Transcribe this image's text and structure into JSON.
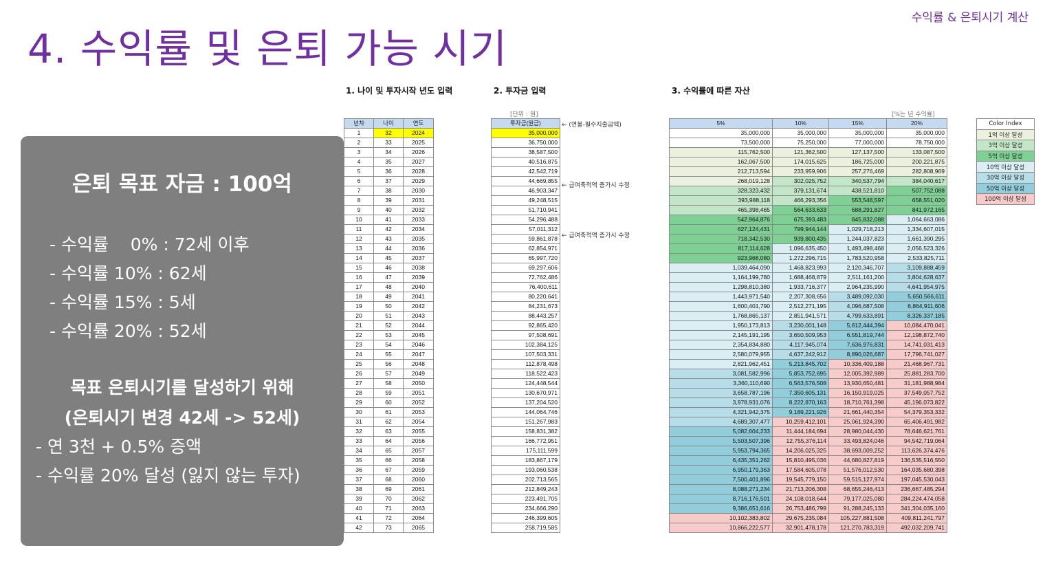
{
  "header": {
    "tag": "수익률 & 은퇴시기 계산"
  },
  "title": "4. 수익률 및 은퇴 가능 시기",
  "sections": {
    "s1": "1. 나이 및 투자시작 년도 입력",
    "s2": "2. 투자금 입력",
    "s3": "3. 수익률에 따른 자산"
  },
  "notes": {
    "unit": "[단위 : 원]",
    "rate_unit": "[%는 년 수익률]"
  },
  "side_notes": [
    "← (연봉-필수지출금액)",
    "← 급여축적액 증가시 수정",
    "← 급여축적액 증가시 수정"
  ],
  "summary": {
    "heading": "은퇴 목표 자금 : 100억",
    "rates": [
      "- 수익률    0% : 72세 이후",
      "- 수익률 10% : 62세",
      "- 수익률 15% : 5세",
      "- 수익률 20% : 52세"
    ],
    "goal1": "목표 은퇴시기를 달성하기 위해",
    "goal2": "(은퇴시기 변경 42세 -> 52세)",
    "bullets": [
      "- 연 3천 + 0.5% 증액",
      "- 수익률 20% 달성 (잃지 않는 투자)"
    ]
  },
  "age_table": {
    "headers": [
      "년차",
      "나이",
      "연도"
    ],
    "rows": [
      [
        "1",
        "32",
        "2024"
      ],
      [
        "2",
        "33",
        "2025"
      ],
      [
        "3",
        "34",
        "2026"
      ],
      [
        "4",
        "35",
        "2027"
      ],
      [
        "5",
        "36",
        "2028"
      ],
      [
        "6",
        "37",
        "2029"
      ],
      [
        "7",
        "38",
        "2030"
      ],
      [
        "8",
        "39",
        "2031"
      ],
      [
        "9",
        "40",
        "2032"
      ],
      [
        "10",
        "41",
        "2033"
      ],
      [
        "11",
        "42",
        "2034"
      ],
      [
        "12",
        "43",
        "2035"
      ],
      [
        "13",
        "44",
        "2036"
      ],
      [
        "14",
        "45",
        "2037"
      ],
      [
        "15",
        "46",
        "2038"
      ],
      [
        "16",
        "47",
        "2039"
      ],
      [
        "17",
        "48",
        "2040"
      ],
      [
        "18",
        "49",
        "2041"
      ],
      [
        "19",
        "50",
        "2042"
      ],
      [
        "20",
        "51",
        "2043"
      ],
      [
        "21",
        "52",
        "2044"
      ],
      [
        "22",
        "53",
        "2045"
      ],
      [
        "23",
        "54",
        "2046"
      ],
      [
        "24",
        "55",
        "2047"
      ],
      [
        "25",
        "56",
        "2048"
      ],
      [
        "26",
        "57",
        "2049"
      ],
      [
        "27",
        "58",
        "2050"
      ],
      [
        "28",
        "59",
        "2051"
      ],
      [
        "29",
        "60",
        "2052"
      ],
      [
        "30",
        "61",
        "2053"
      ],
      [
        "31",
        "62",
        "2054"
      ],
      [
        "32",
        "63",
        "2055"
      ],
      [
        "33",
        "64",
        "2056"
      ],
      [
        "34",
        "65",
        "2057"
      ],
      [
        "35",
        "66",
        "2058"
      ],
      [
        "36",
        "67",
        "2059"
      ],
      [
        "37",
        "68",
        "2060"
      ],
      [
        "38",
        "69",
        "2061"
      ],
      [
        "39",
        "70",
        "2062"
      ],
      [
        "40",
        "71",
        "2063"
      ],
      [
        "41",
        "72",
        "2064"
      ],
      [
        "42",
        "73",
        "2065"
      ]
    ]
  },
  "invest_table": {
    "header": "투자금(원금)",
    "values": [
      "35,000,000",
      "36,750,000",
      "38,587,500",
      "40,516,875",
      "42,542,719",
      "44,669,855",
      "46,903,347",
      "49,248,515",
      "51,710,941",
      "54,296,488",
      "57,011,312",
      "59,861,878",
      "62,854,971",
      "65,997,720",
      "69,297,606",
      "72,762,486",
      "76,400,611",
      "80,220,641",
      "84,231,673",
      "88,443,257",
      "92,865,420",
      "97,508,691",
      "102,384,125",
      "107,503,331",
      "112,878,498",
      "118,522,423",
      "124,448,544",
      "130,670,971",
      "137,204,520",
      "144,064,746",
      "151,267,983",
      "158,831,382",
      "166,772,951",
      "175,111,599",
      "183,867,179",
      "193,060,538",
      "202,713,565",
      "212,849,243",
      "223,491,705",
      "234,666,290",
      "246,399,605",
      "258,719,585"
    ]
  },
  "asset_table": {
    "headers": [
      "5%",
      "10%",
      "15%",
      "20%"
    ],
    "rows": [
      [
        "35,000,000",
        "35,000,000",
        "35,000,000",
        "35,000,000"
      ],
      [
        "73,500,000",
        "75,250,000",
        "77,000,000",
        "78,750,000"
      ],
      [
        "115,762,500",
        "121,362,500",
        "127,137,500",
        "133,087,500"
      ],
      [
        "162,067,500",
        "174,015,625",
        "186,725,000",
        "200,221,875"
      ],
      [
        "212,713,594",
        "233,959,906",
        "257,276,469",
        "282,808,969"
      ],
      [
        "268,019,128",
        "302,025,752",
        "340,537,794",
        "384,040,617"
      ],
      [
        "328,323,432",
        "379,131,674",
        "438,521,810",
        "507,752,088"
      ],
      [
        "393,988,118",
        "466,293,356",
        "553,548,597",
        "658,551,020"
      ],
      [
        "465,398,465",
        "564,633,633",
        "688,291,827",
        "841,972,165"
      ],
      [
        "542,964,876",
        "675,393,483",
        "845,832,088",
        "1,064,663,086"
      ],
      [
        "627,124,431",
        "799,944,144",
        "1,029,718,213",
        "1,334,607,015"
      ],
      [
        "718,342,530",
        "939,800,435",
        "1,244,037,823",
        "1,661,390,295"
      ],
      [
        "817,114,628",
        "1,096,635,450",
        "1,493,498,468",
        "2,056,523,326"
      ],
      [
        "923,968,080",
        "1,272,296,715",
        "1,783,520,958",
        "2,533,825,711"
      ],
      [
        "1,039,464,090",
        "1,468,823,993",
        "2,120,346,707",
        "3,109,888,459"
      ],
      [
        "1,164,199,780",
        "1,688,468,879",
        "2,511,161,200",
        "3,804,628,637"
      ],
      [
        "1,298,810,380",
        "1,933,716,377",
        "2,964,235,990",
        "4,641,954,975"
      ],
      [
        "1,443,971,540",
        "2,207,308,656",
        "3,489,092,030",
        "5,650,566,611"
      ],
      [
        "1,600,401,790",
        "2,512,271,195",
        "4,096,687,508",
        "6,864,911,606"
      ],
      [
        "1,768,865,137",
        "2,851,941,571",
        "4,799,633,891",
        "8,326,337,185"
      ],
      [
        "1,950,173,813",
        "3,230,001,148",
        "5,612,444,394",
        "10,084,470,041"
      ],
      [
        "2,145,191,195",
        "3,650,509,953",
        "6,551,819,744",
        "12,198,872,740"
      ],
      [
        "2,354,834,880",
        "4,117,945,074",
        "7,636,976,831",
        "14,741,031,413"
      ],
      [
        "2,580,079,955",
        "4,637,242,912",
        "8,890,026,687",
        "17,796,741,027"
      ],
      [
        "2,821,962,451",
        "5,213,845,702",
        "10,336,409,188",
        "21,468,967,731"
      ],
      [
        "3,081,582,996",
        "5,853,752,695",
        "12,005,392,989",
        "25,881,283,700"
      ],
      [
        "3,360,110,690",
        "6,563,576,508",
        "13,930,650,481",
        "31,181,988,984"
      ],
      [
        "3,658,787,196",
        "7,350,605,131",
        "16,150,919,025",
        "37,549,057,752"
      ],
      [
        "3,978,931,076",
        "8,222,870,163",
        "18,710,761,398",
        "45,196,073,822"
      ],
      [
        "4,321,942,375",
        "9,189,221,926",
        "21,661,440,354",
        "54,379,353,332"
      ],
      [
        "4,689,307,477",
        "10,259,412,101",
        "25,061,924,390",
        "65,406,491,982"
      ],
      [
        "5,082,604,233",
        "11,444,184,694",
        "28,980,044,430",
        "78,646,621,761"
      ],
      [
        "5,503,507,396",
        "12,755,376,114",
        "33,493,824,046",
        "94,542,719,064"
      ],
      [
        "5,953,794,365",
        "14,206,025,325",
        "38,693,009,252",
        "113,626,374,476"
      ],
      [
        "6,435,351,262",
        "15,810,495,036",
        "44,680,827,819",
        "136,535,516,550"
      ],
      [
        "6,950,179,363",
        "17,584,605,078",
        "51,576,012,530",
        "164,035,680,398"
      ],
      [
        "7,500,401,896",
        "19,545,779,150",
        "59,515,127,974",
        "197,045,530,043"
      ],
      [
        "8,088,271,234",
        "21,713,206,308",
        "68,655,246,413",
        "236,667,485,294"
      ],
      [
        "8,716,176,501",
        "24,108,018,644",
        "79,177,025,080",
        "284,224,474,058"
      ],
      [
        "9,386,651,616",
        "26,753,486,799",
        "91,288,245,133",
        "341,304,035,160"
      ],
      [
        "10,102,383,802",
        "29,675,235,084",
        "105,227,881,508",
        "409,811,241,797"
      ],
      [
        "10,866,222,577",
        "32,901,478,178",
        "121,270,783,319",
        "492,032,209,741"
      ]
    ]
  },
  "color_index": {
    "header": "Color Index",
    "items": [
      {
        "label": "1억 이상 달성",
        "color": "#ebf1de"
      },
      {
        "label": "3억 이상 달성",
        "color": "#c4e6c8"
      },
      {
        "label": "5억 이상 달성",
        "color": "#7fd094"
      },
      {
        "label": "10억 이상 달성",
        "color": "#daeef3"
      },
      {
        "label": "30억 이상 달성",
        "color": "#b7dee8"
      },
      {
        "label": "50억 이상 달성",
        "color": "#92cddc"
      },
      {
        "label": "100억 이상 달성",
        "color": "#f8cbcb"
      }
    ]
  }
}
